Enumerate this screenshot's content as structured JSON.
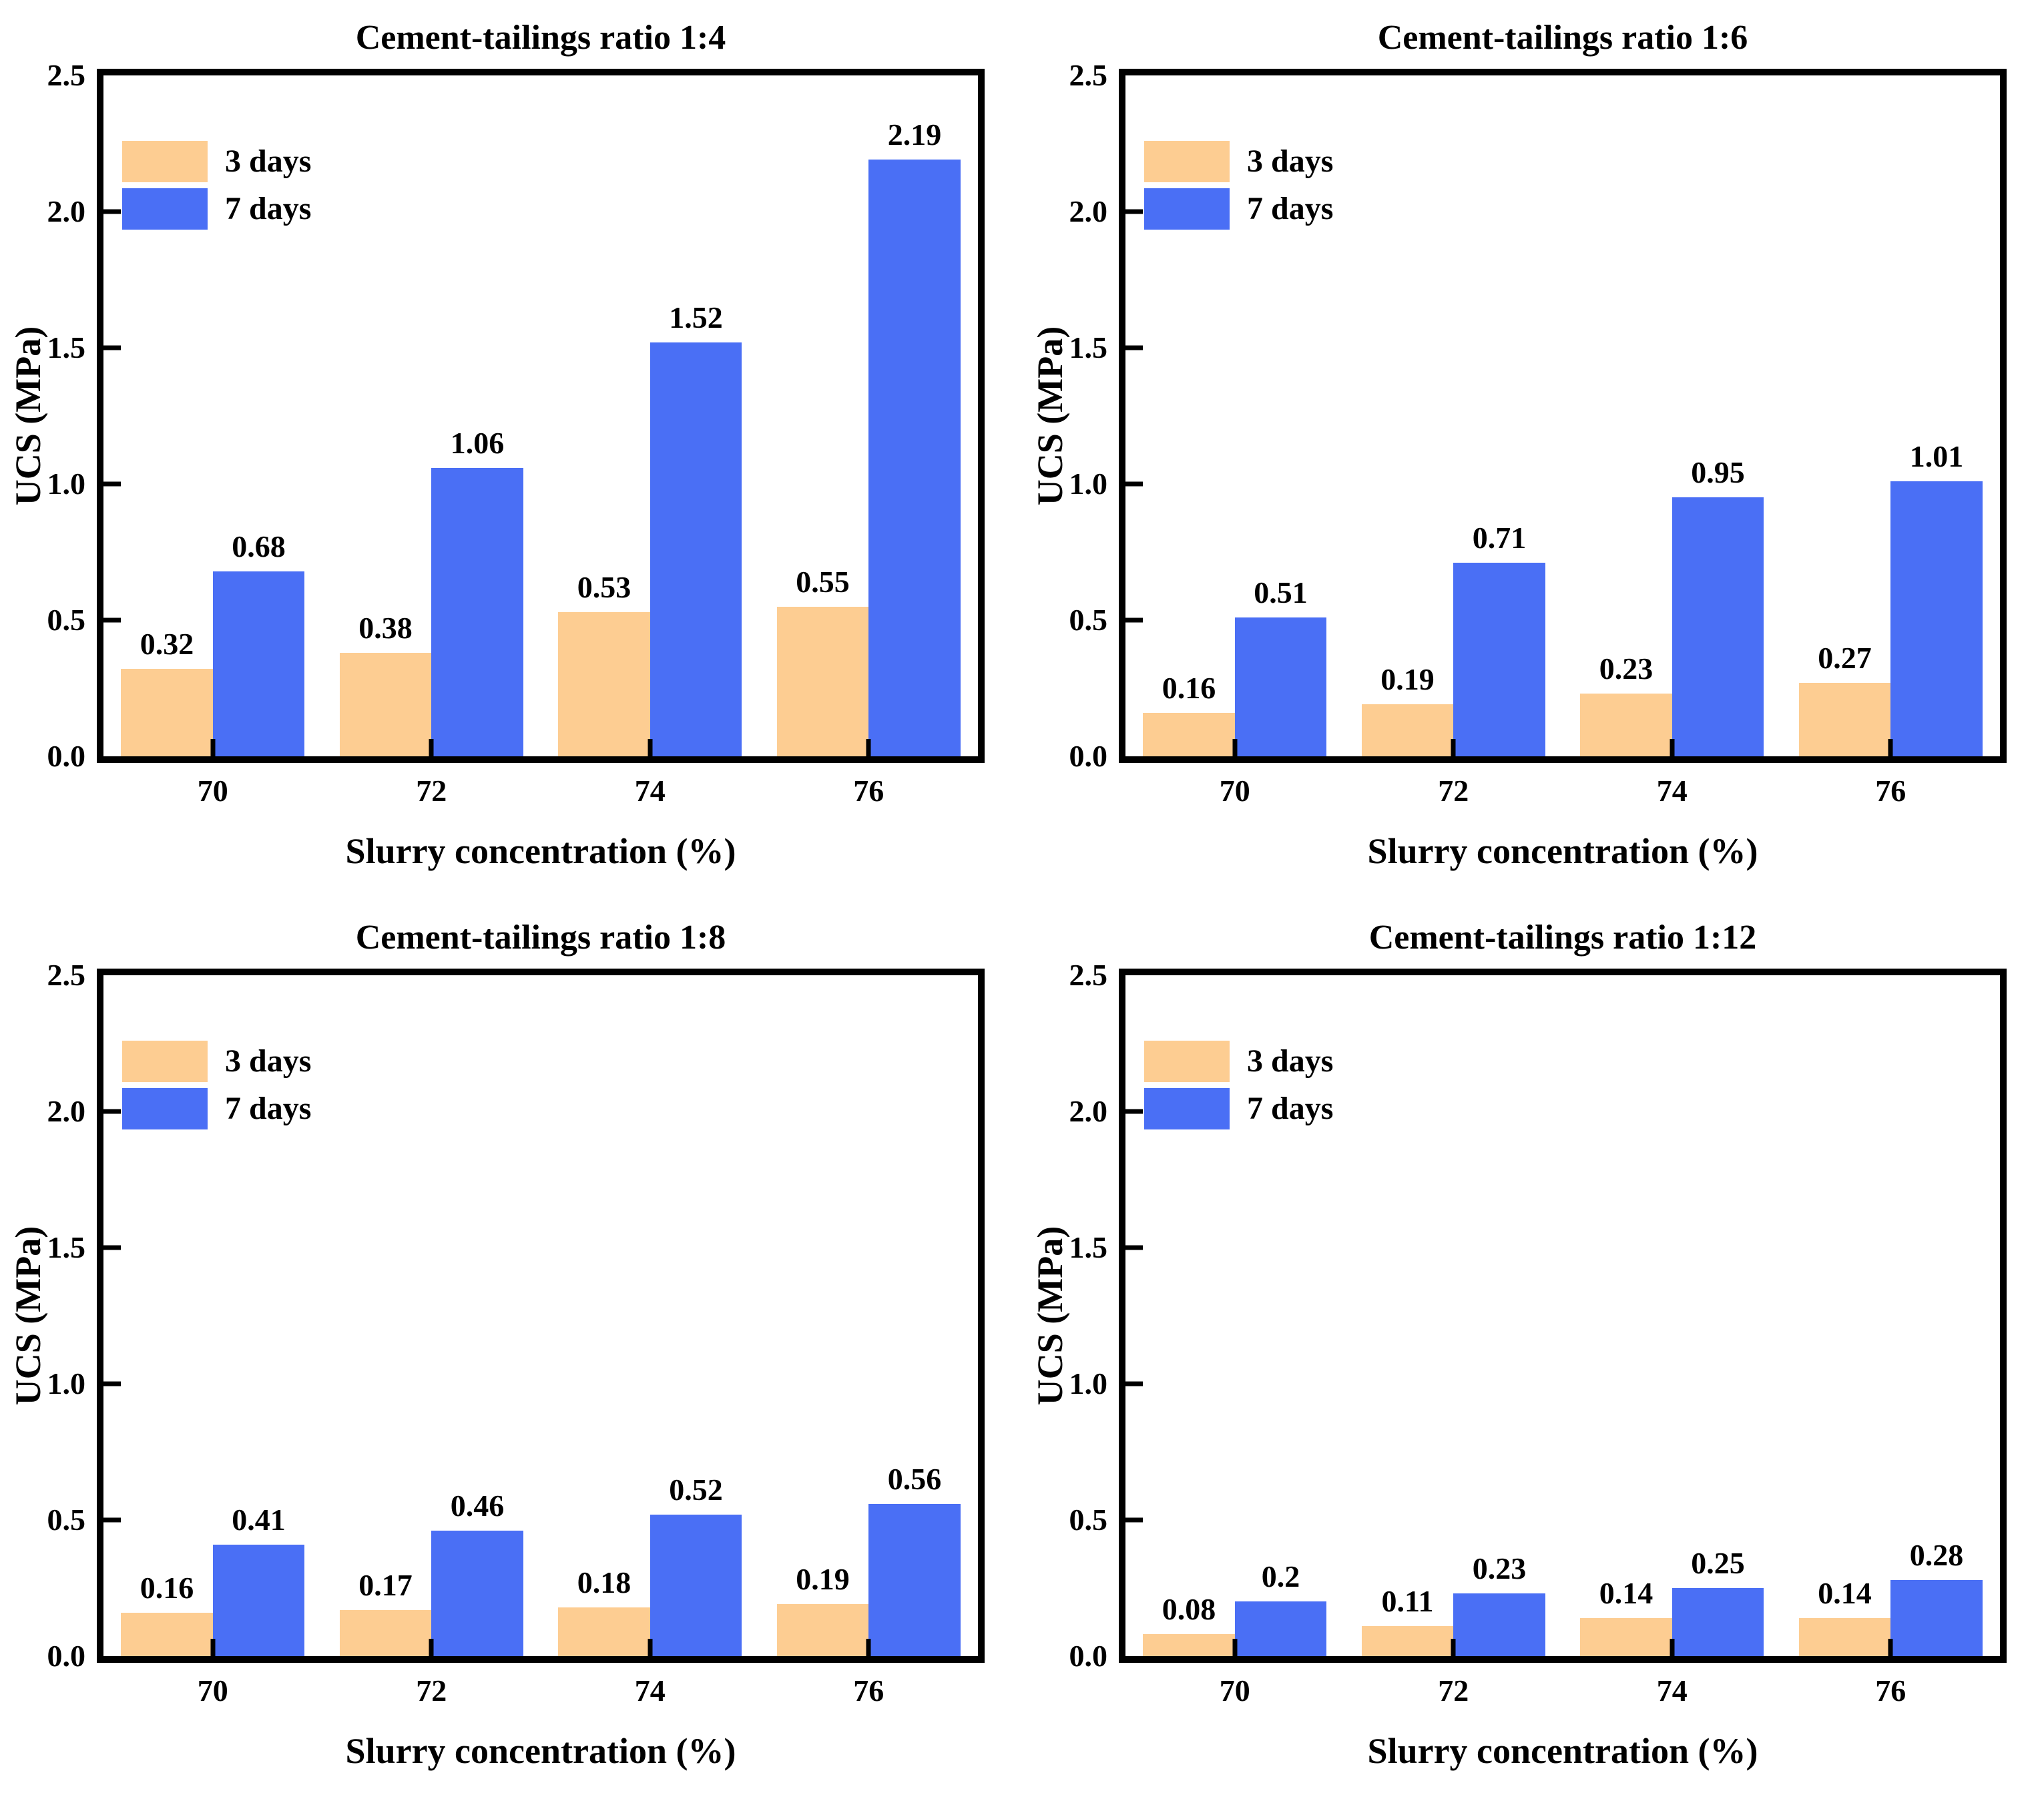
{
  "figure": {
    "background": "#ffffff"
  },
  "colors": {
    "series": [
      "#FDCD92",
      "#4A6FF5"
    ],
    "axis": "#000000",
    "text": "#000000"
  },
  "legend": {
    "position": "upper-left",
    "items": [
      {
        "label": "3 days"
      },
      {
        "label": "7 days"
      }
    ]
  },
  "axes": {
    "y_label": "UCS (MPa)",
    "x_label": "Slurry concentration (%)",
    "y_ticks": [
      "0.0",
      "0.5",
      "1.0",
      "1.5",
      "2.0",
      "2.5"
    ],
    "y_max": 2.5,
    "grid": false,
    "tick_direction": "in"
  },
  "chart_data": [
    {
      "type": "bar",
      "title": "Cement-tailings ratio 1:4",
      "xlabel": "Slurry concentration (%)",
      "ylabel": "UCS (MPa)",
      "ylim": [
        0,
        2.5
      ],
      "categories": [
        "70",
        "72",
        "74",
        "76"
      ],
      "series": [
        {
          "name": "3 days",
          "values": [
            0.32,
            0.38,
            0.53,
            0.55
          ],
          "labels": [
            "0.32",
            "0.38",
            "0.53",
            "0.55"
          ]
        },
        {
          "name": "7 days",
          "values": [
            0.68,
            1.06,
            1.52,
            2.19
          ],
          "labels": [
            "0.68",
            "1.06",
            "1.52",
            "2.19"
          ]
        }
      ]
    },
    {
      "type": "bar",
      "title": "Cement-tailings ratio 1:6",
      "xlabel": "Slurry concentration (%)",
      "ylabel": "UCS (MPa)",
      "ylim": [
        0,
        2.5
      ],
      "categories": [
        "70",
        "72",
        "74",
        "76"
      ],
      "series": [
        {
          "name": "3 days",
          "values": [
            0.16,
            0.19,
            0.23,
            0.27
          ],
          "labels": [
            "0.16",
            "0.19",
            "0.23",
            "0.27"
          ]
        },
        {
          "name": "7 days",
          "values": [
            0.51,
            0.71,
            0.95,
            1.01
          ],
          "labels": [
            "0.51",
            "0.71",
            "0.95",
            "1.01"
          ]
        }
      ]
    },
    {
      "type": "bar",
      "title": "Cement-tailings ratio 1:8",
      "xlabel": "Slurry concentration (%)",
      "ylabel": "UCS (MPa)",
      "ylim": [
        0,
        2.5
      ],
      "categories": [
        "70",
        "72",
        "74",
        "76"
      ],
      "series": [
        {
          "name": "3 days",
          "values": [
            0.16,
            0.17,
            0.18,
            0.19
          ],
          "labels": [
            "0.16",
            "0.17",
            "0.18",
            "0.19"
          ]
        },
        {
          "name": "7 days",
          "values": [
            0.41,
            0.46,
            0.52,
            0.56
          ],
          "labels": [
            "0.41",
            "0.46",
            "0.52",
            "0.56"
          ]
        }
      ]
    },
    {
      "type": "bar",
      "title": "Cement-tailings ratio 1:12",
      "xlabel": "Slurry concentration (%)",
      "ylabel": "UCS (MPa)",
      "ylim": [
        0,
        2.5
      ],
      "categories": [
        "70",
        "72",
        "74",
        "76"
      ],
      "series": [
        {
          "name": "3 days",
          "values": [
            0.08,
            0.11,
            0.14,
            0.14
          ],
          "labels": [
            "0.08",
            "0.11",
            "0.14",
            "0.14"
          ]
        },
        {
          "name": "7 days",
          "values": [
            0.2,
            0.23,
            0.25,
            0.28
          ],
          "labels": [
            "0.2",
            "0.23",
            "0.25",
            "0.28"
          ]
        }
      ]
    }
  ]
}
